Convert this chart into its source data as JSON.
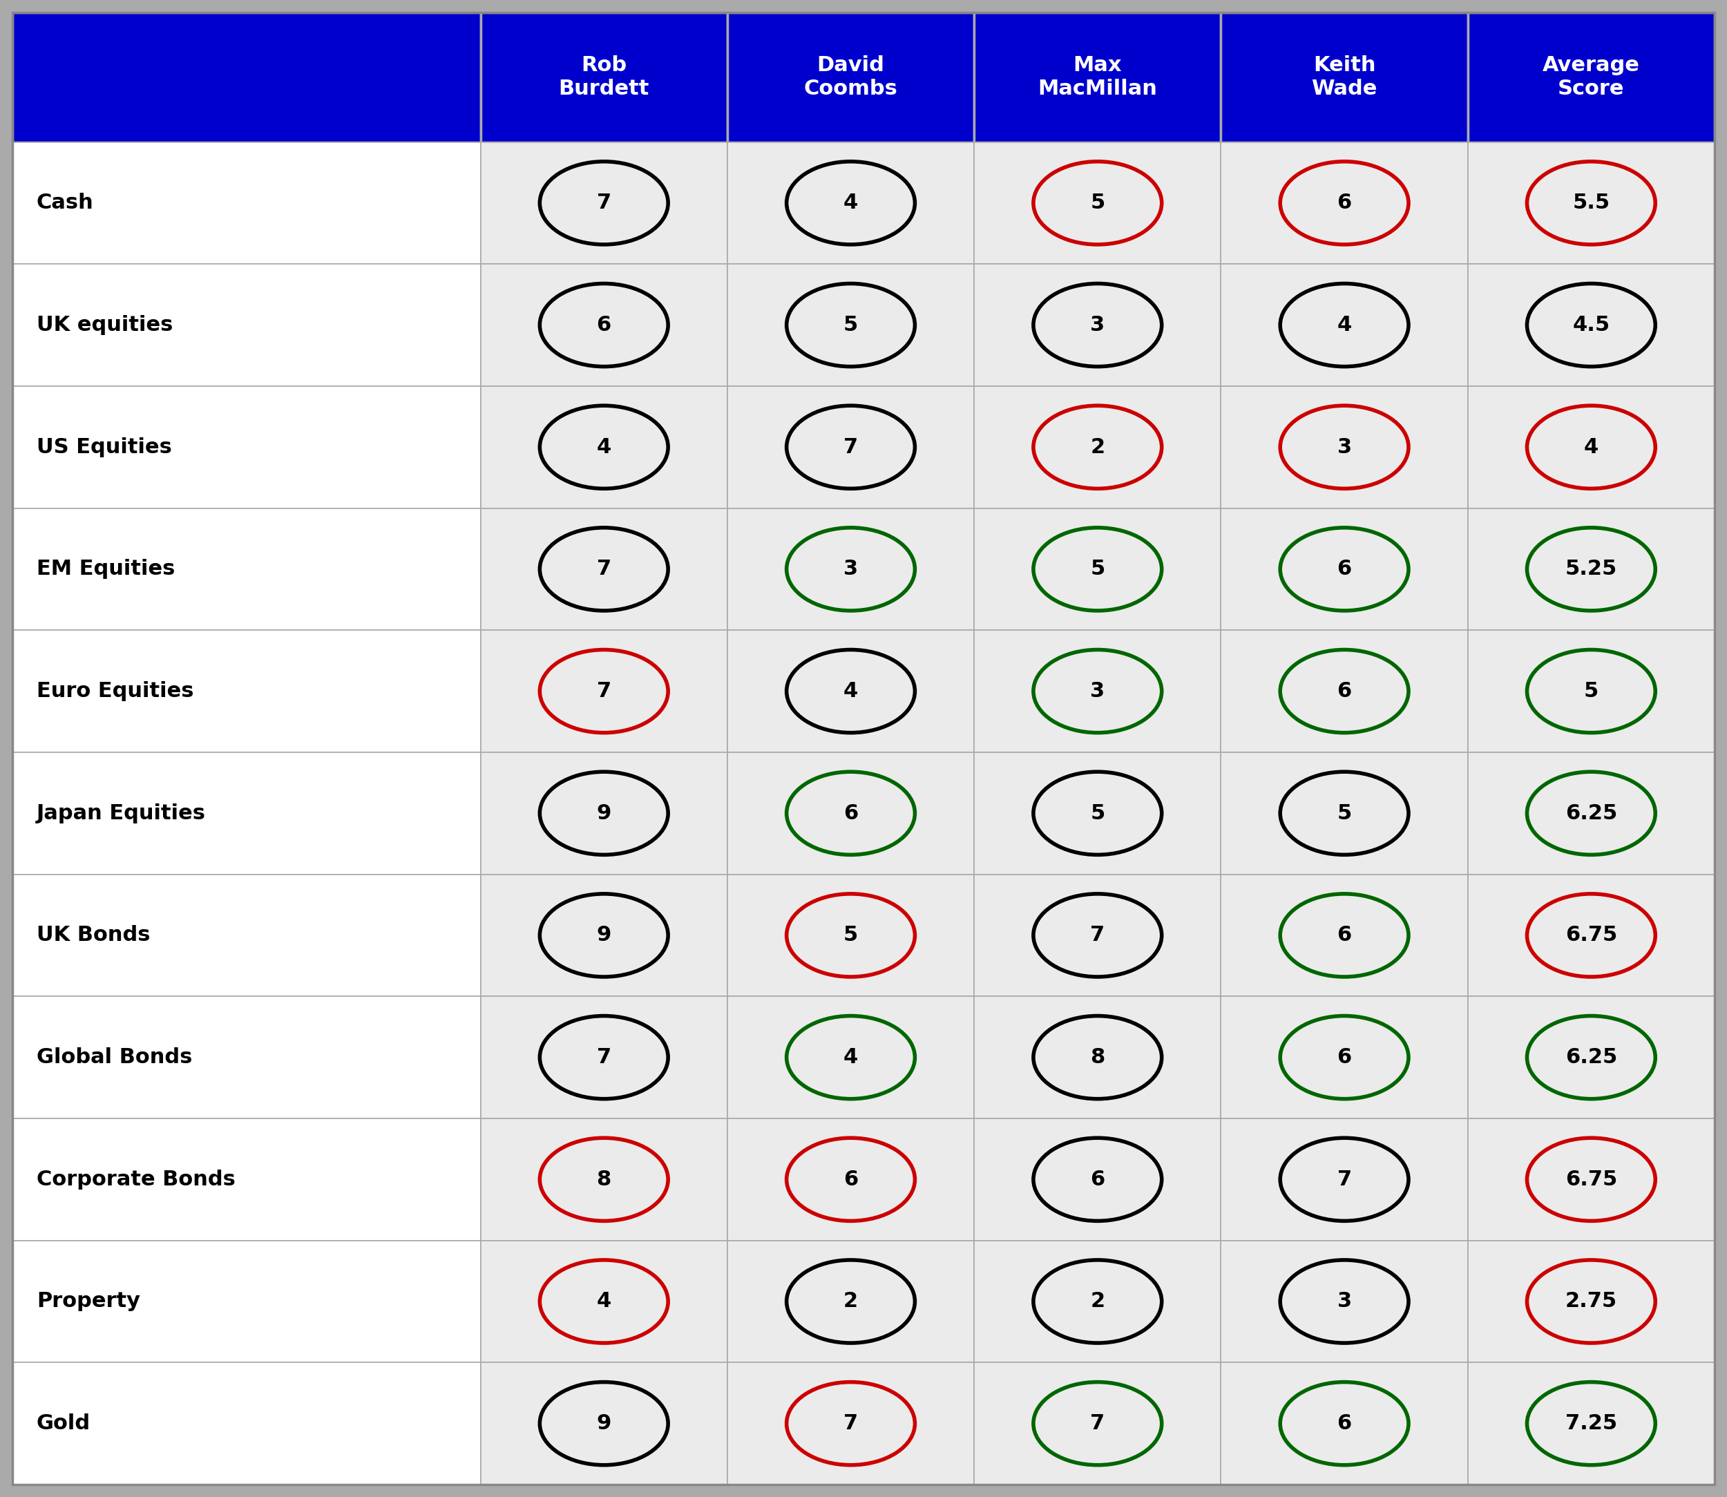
{
  "header_bg": "#0000CC",
  "header_text_color": "#FFFFFF",
  "label_cell_bg": "#FFFFFF",
  "data_cell_bg": "#EBEBEB",
  "grid_color": "#AAAAAA",
  "outer_bg": "#AAAAAA",
  "columns": [
    "Rob\nBurdett",
    "David\nCoombs",
    "Max\nMacMillan",
    "Keith\nWade",
    "Average\nScore"
  ],
  "rows": [
    "Cash",
    "UK equities",
    "US Equities",
    "EM Equities",
    "Euro Equities",
    "Japan Equities",
    "UK Bonds",
    "Global Bonds",
    "Corporate Bonds",
    "Property",
    "Gold"
  ],
  "values": [
    [
      "7",
      "4",
      "5",
      "6",
      "5.5"
    ],
    [
      "6",
      "5",
      "3",
      "4",
      "4.5"
    ],
    [
      "4",
      "7",
      "2",
      "3",
      "4"
    ],
    [
      "7",
      "3",
      "5",
      "6",
      "5.25"
    ],
    [
      "7",
      "4",
      "3",
      "6",
      "5"
    ],
    [
      "9",
      "6",
      "5",
      "5",
      "6.25"
    ],
    [
      "9",
      "5",
      "7",
      "6",
      "6.75"
    ],
    [
      "7",
      "4",
      "8",
      "6",
      "6.25"
    ],
    [
      "8",
      "6",
      "6",
      "7",
      "6.75"
    ],
    [
      "4",
      "2",
      "2",
      "3",
      "2.75"
    ],
    [
      "9",
      "7",
      "7",
      "6",
      "7.25"
    ]
  ],
  "circle_colors": [
    [
      "black",
      "black",
      "red",
      "red",
      "red"
    ],
    [
      "black",
      "black",
      "black",
      "black",
      "black"
    ],
    [
      "black",
      "black",
      "red",
      "red",
      "red"
    ],
    [
      "black",
      "green",
      "green",
      "green",
      "green"
    ],
    [
      "red",
      "black",
      "green",
      "green",
      "green"
    ],
    [
      "black",
      "green",
      "black",
      "black",
      "green"
    ],
    [
      "black",
      "red",
      "black",
      "green",
      "red"
    ],
    [
      "black",
      "green",
      "black",
      "green",
      "green"
    ],
    [
      "red",
      "red",
      "black",
      "black",
      "red"
    ],
    [
      "red",
      "black",
      "black",
      "black",
      "red"
    ],
    [
      "black",
      "red",
      "green",
      "green",
      "green"
    ]
  ],
  "color_map": {
    "black": "#000000",
    "red": "#CC0000",
    "green": "#006600"
  },
  "header_fontsize": 22,
  "label_fontsize": 22,
  "value_fontsize": 22,
  "circle_linewidth": 4.0,
  "grid_linewidth": 1.2
}
